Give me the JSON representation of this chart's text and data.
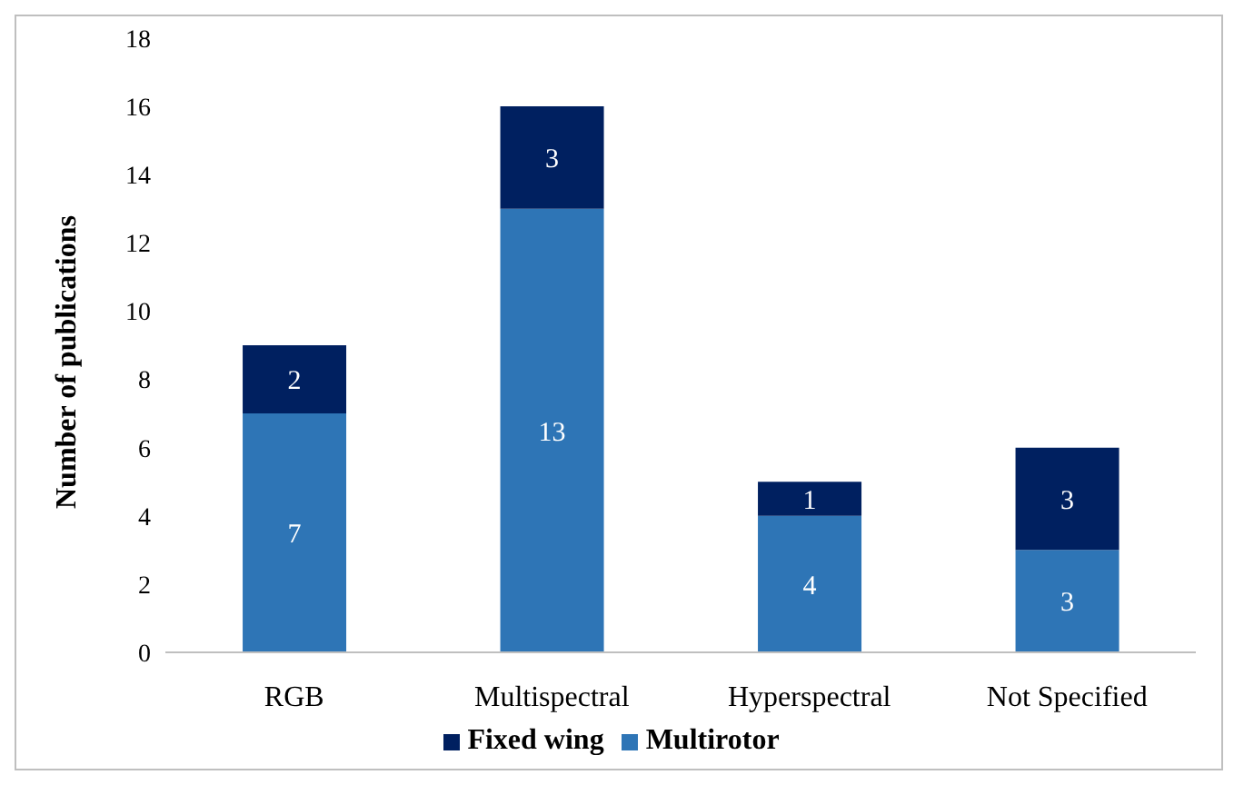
{
  "chart_data": {
    "type": "bar",
    "ylabel": "Number of publications",
    "categories": [
      "RGB",
      "Multispectral",
      "Hyperspectral",
      "Not Specified"
    ],
    "series": [
      {
        "name": "Multirotor",
        "color": "#2e75b6",
        "values": [
          7,
          13,
          4,
          3
        ]
      },
      {
        "name": "Fixed wing",
        "color": "#002060",
        "values": [
          2,
          3,
          1,
          3
        ]
      }
    ],
    "stacked": true,
    "ylim": [
      0,
      18
    ],
    "yticks": [
      0,
      2,
      4,
      6,
      8,
      10,
      12,
      14,
      16,
      18
    ],
    "grid": false,
    "legend": "bottom",
    "data_labels": true
  }
}
